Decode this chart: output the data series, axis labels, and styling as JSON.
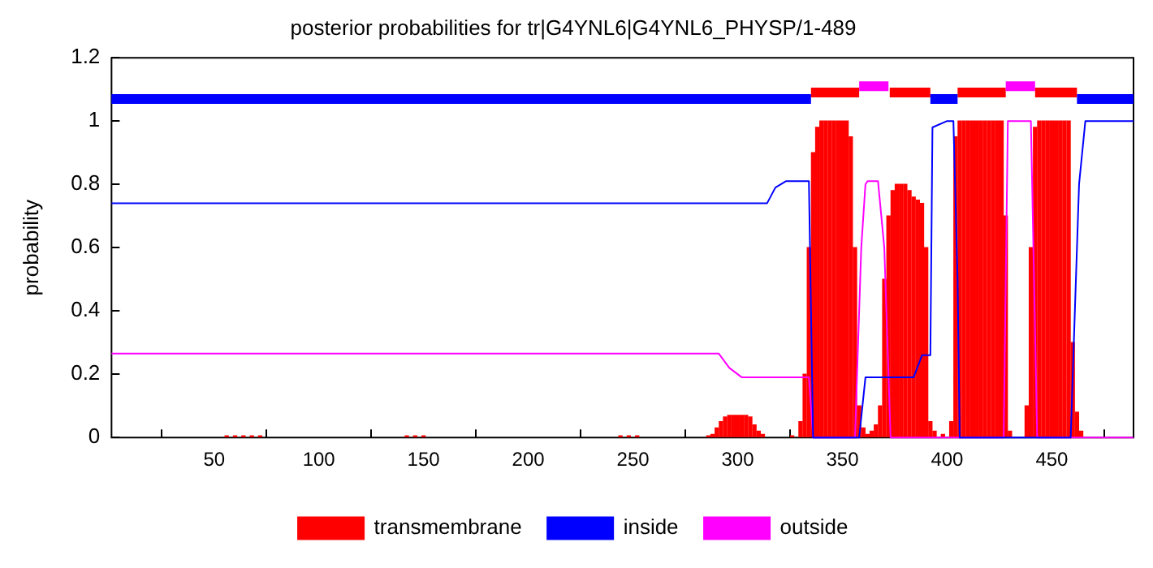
{
  "chart_data": {
    "type": "line",
    "title": "posterior probabilities for tr|G4YNL6|G4YNL6_PHYSP/1-489",
    "ylabel": "probability",
    "xlim": [
      1,
      489
    ],
    "xticks": [
      50,
      100,
      150,
      200,
      250,
      300,
      350,
      400,
      450
    ],
    "ylim": [
      0,
      1.2
    ],
    "yticks": [
      0,
      0.2,
      0.4,
      0.6,
      0.8,
      1,
      1.2
    ],
    "grid": false,
    "legend": "bottom",
    "marker": "none",
    "line_style": "solid",
    "series": [
      {
        "name": "transmembrane",
        "type": "bar",
        "color": "#ff0000",
        "x": [
          56,
          60,
          64,
          68,
          72,
          142,
          146,
          150,
          244,
          248,
          252,
          286,
          288,
          290,
          292,
          294,
          296,
          298,
          300,
          302,
          304,
          306,
          308,
          310,
          312,
          326,
          330,
          332,
          334,
          336,
          338,
          340,
          342,
          344,
          346,
          348,
          350,
          352,
          354,
          356,
          358,
          360,
          362,
          364,
          366,
          368,
          370,
          372,
          374,
          376,
          378,
          380,
          382,
          384,
          386,
          388,
          390,
          392,
          394,
          398,
          402,
          404,
          406,
          408,
          410,
          412,
          414,
          416,
          418,
          420,
          422,
          424,
          426,
          428,
          430,
          438,
          440,
          442,
          444,
          446,
          448,
          450,
          452,
          454,
          456,
          458,
          460,
          462,
          464
        ],
        "values": [
          0.005,
          0.005,
          0.005,
          0.005,
          0.005,
          0.005,
          0.005,
          0.005,
          0.005,
          0.005,
          0.005,
          0.005,
          0.01,
          0.03,
          0.05,
          0.065,
          0.07,
          0.07,
          0.07,
          0.07,
          0.07,
          0.065,
          0.04,
          0.02,
          0.01,
          0.005,
          0.05,
          0.2,
          0.6,
          0.9,
          0.98,
          1,
          1,
          1,
          1,
          1,
          1,
          1,
          0.95,
          0.6,
          0.1,
          0.03,
          0.01,
          0.02,
          0.04,
          0.1,
          0.5,
          0.7,
          0.78,
          0.8,
          0.8,
          0.8,
          0.78,
          0.76,
          0.75,
          0.74,
          0.6,
          0.05,
          0.02,
          0.01,
          0.05,
          0.95,
          1,
          1,
          1,
          1,
          1,
          1,
          1,
          1,
          1,
          1,
          1,
          0.7,
          0.02,
          0.1,
          0.6,
          0.98,
          1,
          1,
          1,
          1,
          1,
          1,
          1,
          1,
          0.3,
          0.08,
          0.02
        ]
      },
      {
        "name": "inside",
        "color": "#0000ff",
        "x": [
          1,
          314,
          318,
          323,
          334,
          335,
          336,
          358,
          361,
          384,
          388,
          392,
          393,
          400,
          403,
          405,
          406,
          459,
          463,
          466,
          489
        ],
        "values": [
          0.74,
          0.74,
          0.79,
          0.81,
          0.81,
          0.4,
          0,
          0,
          0.19,
          0.19,
          0.26,
          0.26,
          0.98,
          1,
          1,
          0.5,
          0,
          0,
          0.8,
          1,
          1
        ]
      },
      {
        "name": "outside",
        "color": "#ff00ff",
        "x": [
          1,
          291,
          296,
          302,
          334,
          335,
          336,
          356,
          359,
          361,
          362,
          367,
          370,
          373,
          427,
          429,
          440,
          443,
          489
        ],
        "values": [
          0.265,
          0.265,
          0.22,
          0.19,
          0.19,
          0.1,
          0,
          0,
          0.6,
          0.8,
          0.81,
          0.81,
          0.6,
          0,
          0,
          1,
          1,
          0,
          0
        ]
      },
      {
        "color": "#0000ff",
        "x": [
          1,
          335,
          363,
          392,
          405,
          406,
          462,
          489
        ],
        "values": [
          1.07,
          1.07,
          null,
          1.07,
          1.07,
          null,
          1.07,
          1.07
        ]
      },
      {
        "color": "#ff00ff",
        "x": [
          358,
          372,
          400,
          428,
          442
        ],
        "values": [
          1.11,
          1.11,
          null,
          1.11,
          1.11
        ]
      },
      {
        "color": "#ff0000",
        "x": [
          335,
          358,
          365,
          372.6,
          392,
          398,
          405,
          428,
          435,
          442,
          462
        ],
        "values": [
          1.09,
          1.09,
          null,
          1.09,
          1.09,
          null,
          1.09,
          1.09,
          null,
          1.09,
          1.09
        ]
      }
    ]
  }
}
